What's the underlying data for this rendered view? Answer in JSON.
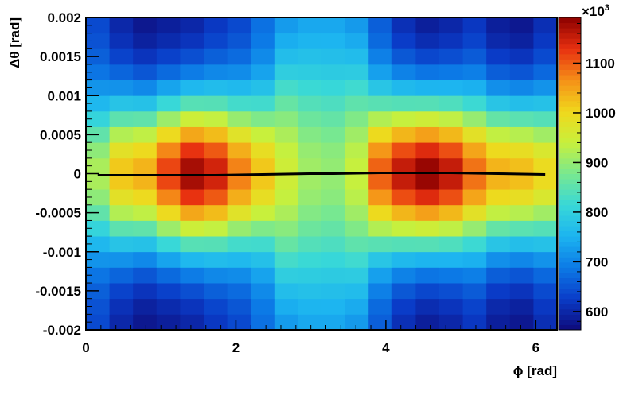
{
  "chart_data": {
    "type": "heatmap",
    "xlabel": "ϕ [rad]",
    "ylabel": "Δθ [rad]",
    "x_bins": [
      0,
      0.3142,
      0.6283,
      0.9425,
      1.2566,
      1.5708,
      1.885,
      2.1991,
      2.5133,
      2.8274,
      3.1416,
      3.4558,
      3.7699,
      4.0841,
      4.3982,
      4.7124,
      5.0265,
      5.3407,
      5.6549,
      5.969,
      6.2832
    ],
    "y_bins": [
      -0.002,
      -0.0018,
      -0.0016,
      -0.0014,
      -0.0012,
      -0.001,
      -0.0008,
      -0.0006,
      -0.0004,
      -0.0002,
      0,
      0.0002,
      0.0004,
      0.0006,
      0.0008,
      0.001,
      0.0012,
      0.0014,
      0.0016,
      0.0018,
      0.002
    ],
    "z": [
      [
        640,
        601,
        580,
        590,
        600,
        621,
        639,
        680,
        725,
        739,
        739,
        723,
        661,
        611,
        590,
        600,
        620,
        590,
        581,
        610
      ],
      [
        648,
        612,
        593,
        604,
        616,
        635,
        652,
        689,
        745,
        754,
        753,
        742,
        673,
        626,
        607,
        616,
        633,
        602,
        593,
        621
      ],
      [
        662,
        633,
        616,
        631,
        645,
        662,
        674,
        706,
        768,
        772,
        770,
        765,
        695,
        654,
        637,
        644,
        657,
        625,
        616,
        640
      ],
      [
        684,
        667,
        652,
        673,
        691,
        704,
        708,
        733,
        796,
        793,
        790,
        792,
        730,
        697,
        684,
        688,
        694,
        660,
        651,
        671
      ],
      [
        717,
        715,
        705,
        734,
        758,
        765,
        760,
        773,
        827,
        817,
        812,
        822,
        781,
        761,
        754,
        753,
        748,
        712,
        703,
        716
      ],
      [
        758,
        778,
        774,
        814,
        845,
        844,
        826,
        824,
        860,
        842,
        836,
        853,
        847,
        843,
        844,
        837,
        819,
        780,
        770,
        775
      ],
      [
        807,
        851,
        855,
        906,
        946,
        937,
        902,
        883,
        891,
        866,
        858,
        884,
        923,
        939,
        948,
        934,
        901,
        858,
        849,
        843
      ],
      [
        855,
        923,
        934,
        998,
        1046,
        1028,
        978,
        941,
        918,
        886,
        877,
        909,
        999,
        1033,
        1052,
        1031,
        982,
        936,
        926,
        910
      ],
      [
        895,
        982,
        998,
        1072,
        1128,
        1102,
        1040,
        989,
        938,
        901,
        892,
        929,
        1060,
        1110,
        1136,
        1109,
        1048,
        999,
        989,
        965
      ],
      [
        917,
        1016,
        1035,
        1115,
        1174,
        1145,
        1075,
        1017,
        949,
        909,
        899,
        939,
        1096,
        1154,
        1184,
        1154,
        1085,
        1035,
        1025,
        996
      ],
      [
        917,
        1016,
        1035,
        1115,
        1174,
        1145,
        1075,
        1017,
        949,
        909,
        899,
        939,
        1096,
        1154,
        1184,
        1154,
        1085,
        1035,
        1025,
        996
      ],
      [
        895,
        982,
        998,
        1072,
        1128,
        1102,
        1040,
        989,
        938,
        901,
        892,
        929,
        1060,
        1110,
        1136,
        1109,
        1048,
        999,
        989,
        965
      ],
      [
        855,
        923,
        934,
        998,
        1046,
        1028,
        978,
        941,
        918,
        886,
        877,
        909,
        999,
        1033,
        1052,
        1031,
        982,
        936,
        926,
        910
      ],
      [
        807,
        851,
        855,
        906,
        946,
        937,
        902,
        883,
        891,
        866,
        858,
        884,
        923,
        939,
        948,
        934,
        901,
        858,
        849,
        843
      ],
      [
        758,
        778,
        774,
        814,
        845,
        844,
        826,
        824,
        860,
        842,
        836,
        853,
        847,
        843,
        844,
        837,
        819,
        780,
        770,
        775
      ],
      [
        717,
        715,
        705,
        734,
        758,
        765,
        760,
        773,
        827,
        817,
        812,
        822,
        781,
        761,
        754,
        753,
        748,
        712,
        703,
        716
      ],
      [
        684,
        667,
        652,
        673,
        691,
        704,
        708,
        733,
        796,
        793,
        790,
        792,
        730,
        697,
        684,
        688,
        694,
        660,
        651,
        671
      ],
      [
        662,
        633,
        616,
        631,
        645,
        662,
        674,
        706,
        768,
        772,
        770,
        765,
        695,
        654,
        637,
        644,
        657,
        625,
        616,
        640
      ],
      [
        648,
        612,
        593,
        604,
        616,
        635,
        652,
        689,
        745,
        754,
        753,
        742,
        673,
        626,
        607,
        616,
        633,
        602,
        593,
        621
      ],
      [
        640,
        601,
        580,
        590,
        600,
        621,
        639,
        680,
        725,
        739,
        739,
        723,
        661,
        611,
        590,
        600,
        620,
        590,
        581,
        610
      ]
    ],
    "profile": {
      "color": "#000000",
      "x": [
        0.157,
        0.471,
        0.785,
        1.1,
        1.414,
        1.728,
        2.042,
        2.356,
        2.67,
        2.985,
        3.299,
        3.613,
        3.927,
        4.241,
        4.555,
        4.869,
        5.184,
        5.498,
        5.812,
        6.126
      ],
      "values": [
        -2e-05,
        -2e-05,
        -2e-05,
        -2e-05,
        -2e-05,
        -2e-05,
        -1.5e-05,
        -1e-05,
        -5e-06,
        0,
        0,
        5e-06,
        1e-05,
        1e-05,
        1e-05,
        1e-05,
        5e-06,
        0,
        -5e-06,
        -1e-05
      ]
    },
    "xlim": [
      0,
      6.2832
    ],
    "ylim": [
      -0.002,
      0.002
    ],
    "zlim": [
      563,
      1192
    ],
    "xticks": [
      0,
      2,
      4,
      6
    ],
    "yticks": [
      -0.002,
      -0.0015,
      -0.001,
      -0.0005,
      0,
      0.0005,
      0.001,
      0.0015,
      0.002
    ],
    "zticks": [
      600,
      700,
      800,
      900,
      1000,
      1100
    ],
    "z_multiplier": {
      "base": "×10",
      "exponent": "3"
    },
    "palette": [
      "#0e0a7a",
      "#0a3cc8",
      "#0c7ae6",
      "#1cb4f0",
      "#38d8d8",
      "#78e890",
      "#c8f03c",
      "#f0d81c",
      "#f59018",
      "#e83010",
      "#8c0000"
    ]
  }
}
